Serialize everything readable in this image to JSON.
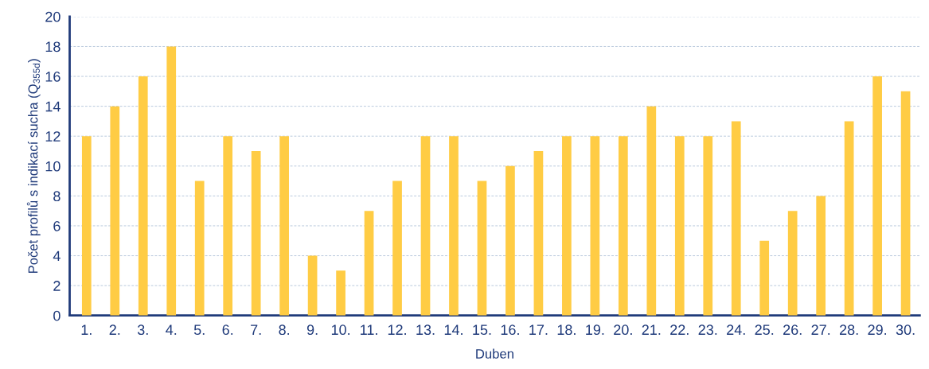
{
  "chart_data": {
    "type": "bar",
    "xlabel": "Duben",
    "ylabel": "Počet profilů s indikací sucha (Q$_{355d}$)",
    "categories": [
      "1.",
      "2.",
      "3.",
      "4.",
      "5.",
      "6.",
      "7.",
      "8.",
      "9.",
      "10.",
      "11.",
      "12.",
      "13.",
      "14.",
      "15.",
      "16.",
      "17.",
      "18.",
      "19.",
      "20.",
      "21.",
      "22.",
      "23.",
      "24.",
      "25.",
      "26.",
      "27.",
      "28.",
      "29.",
      "30."
    ],
    "values": [
      12,
      14,
      16,
      18,
      9,
      12,
      11,
      12,
      4,
      3,
      7,
      9,
      12,
      12,
      9,
      10,
      11,
      12,
      12,
      12,
      14,
      12,
      12,
      13,
      5,
      7,
      8,
      13,
      16,
      15
    ],
    "color": "#ffcc44",
    "ylim": [
      0,
      20
    ],
    "yticks": [
      0,
      2,
      4,
      6,
      8,
      10,
      12,
      14,
      16,
      18,
      20
    ],
    "grid": "y",
    "legend": false
  }
}
